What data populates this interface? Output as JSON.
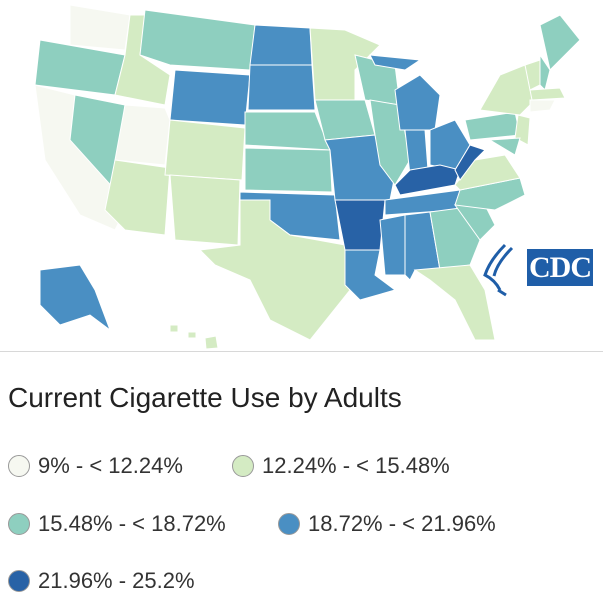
{
  "title": "Current Cigarette Use by Adults",
  "logo_text": "CDC",
  "colors": [
    "#f6f8f1",
    "#d4ebc3",
    "#8ecfbf",
    "#4a8fc3",
    "#2862a6"
  ],
  "legend": [
    {
      "label": "9% - < 12.24%",
      "class": 0
    },
    {
      "label": "12.24% - < 15.48%",
      "class": 1
    },
    {
      "label": "15.48% - < 18.72%",
      "class": 2
    },
    {
      "label": "18.72% - < 21.96%",
      "class": 3
    },
    {
      "label": "21.96% - 25.2%",
      "class": 4
    }
  ],
  "states": {
    "WA": 0,
    "OR": 2,
    "CA": 0,
    "NV": 2,
    "ID": 1,
    "MT": 2,
    "WY": 3,
    "UT": 0,
    "AZ": 1,
    "CO": 1,
    "NM": 1,
    "ND": 3,
    "SD": 3,
    "NE": 2,
    "KS": 2,
    "OK": 3,
    "TX": 1,
    "MN": 1,
    "IA": 2,
    "MO": 3,
    "AR": 4,
    "LA": 3,
    "WI": 2,
    "IL": 2,
    "MI": 3,
    "IN": 3,
    "OH": 3,
    "KY": 4,
    "TN": 3,
    "MS": 3,
    "AL": 3,
    "GA": 2,
    "FL": 1,
    "SC": 2,
    "NC": 2,
    "VA": 1,
    "WV": 4,
    "PA": 2,
    "NY": 1,
    "ME": 2,
    "VT": 1,
    "NH": 2,
    "MA": 1,
    "CT": 0,
    "NJ": 1,
    "MD": 2,
    "AK": 3,
    "HI": 1
  }
}
